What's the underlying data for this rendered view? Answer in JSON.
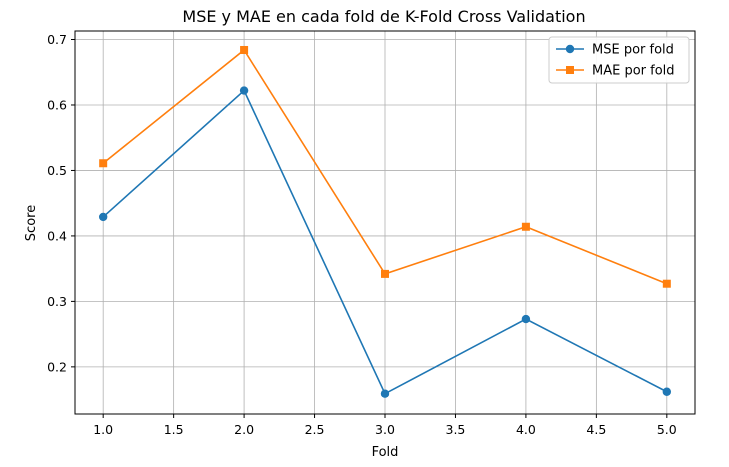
{
  "chart_data": {
    "type": "line",
    "title": "MSE y MAE en cada fold de K-Fold Cross Validation",
    "xlabel": "Fold",
    "ylabel": "Score",
    "xlim": [
      0.8,
      5.2
    ],
    "ylim": [
      0.128,
      0.713
    ],
    "xticks": [
      1.0,
      1.5,
      2.0,
      2.5,
      3.0,
      3.5,
      4.0,
      4.5,
      5.0
    ],
    "xtick_labels": [
      "1.0",
      "1.5",
      "2.0",
      "2.5",
      "3.0",
      "3.5",
      "4.0",
      "4.5",
      "5.0"
    ],
    "yticks": [
      0.2,
      0.3,
      0.4,
      0.5,
      0.6,
      0.7
    ],
    "ytick_labels": [
      "0.2",
      "0.3",
      "0.4",
      "0.5",
      "0.6",
      "0.7"
    ],
    "grid": true,
    "legend_position": "top-right",
    "x": [
      1,
      2,
      3,
      4,
      5
    ],
    "series": [
      {
        "name": "MSE por fold",
        "values": [
          0.429,
          0.622,
          0.159,
          0.273,
          0.162
        ],
        "color": "#1f77b4",
        "marker": "circle"
      },
      {
        "name": "MAE por fold",
        "values": [
          0.511,
          0.684,
          0.342,
          0.414,
          0.327
        ],
        "color": "#ff7f0e",
        "marker": "square"
      }
    ]
  }
}
